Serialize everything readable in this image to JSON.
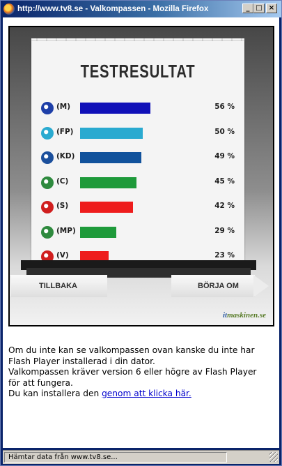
{
  "window": {
    "title": "http://www.tv8.se - Valkompassen - Mozilla Firefox",
    "min_label": "_",
    "max_label": "□",
    "close_label": "×"
  },
  "flash": {
    "title": "TESTRESULTAT",
    "back_label": "TILLBAKA",
    "start_label": "BÖRJA OM",
    "brand_it": "it",
    "brand_rest": "maskinen.se"
  },
  "chart_data": {
    "type": "bar",
    "title": "TESTRESULTAT",
    "categories": [
      "(M)",
      "(FP)",
      "(KD)",
      "(C)",
      "(S)",
      "(MP)",
      "(V)"
    ],
    "values": [
      56,
      50,
      49,
      45,
      42,
      29,
      23
    ],
    "value_labels": [
      "56 %",
      "50 %",
      "49 %",
      "45 %",
      "42 %",
      "29 %",
      "23 %"
    ],
    "colors": [
      "#1010b8",
      "#2aaad0",
      "#11529c",
      "#1e9a3a",
      "#ee1c1c",
      "#1e9a3a",
      "#ee1c1c"
    ],
    "icon_colors": [
      "#1e3fa8",
      "#2aaad0",
      "#1b4f9c",
      "#2e8a3e",
      "#d01e1e",
      "#2e8a3e",
      "#d01e1e"
    ],
    "icons": [
      "moderaterna-icon",
      "folkpartiet-icon",
      "kristdemokraterna-icon",
      "centerpartiet-icon",
      "socialdemokraterna-icon",
      "miljopartiet-icon",
      "vansterpartiet-icon"
    ],
    "xlim": [
      0,
      100
    ]
  },
  "page": {
    "line1": "Om du inte kan se valkompassen ovan kanske du inte har",
    "line2": "Flash Player installerad i din dator.",
    "line3": "Valkompassen kräver version 6 eller högre av Flash Player",
    "line4": "för att fungera.",
    "line5_prefix": "Du kan installera den ",
    "line5_link": "genom att klicka här."
  },
  "status": {
    "text": "Hämtar data från www.tv8.se..."
  }
}
